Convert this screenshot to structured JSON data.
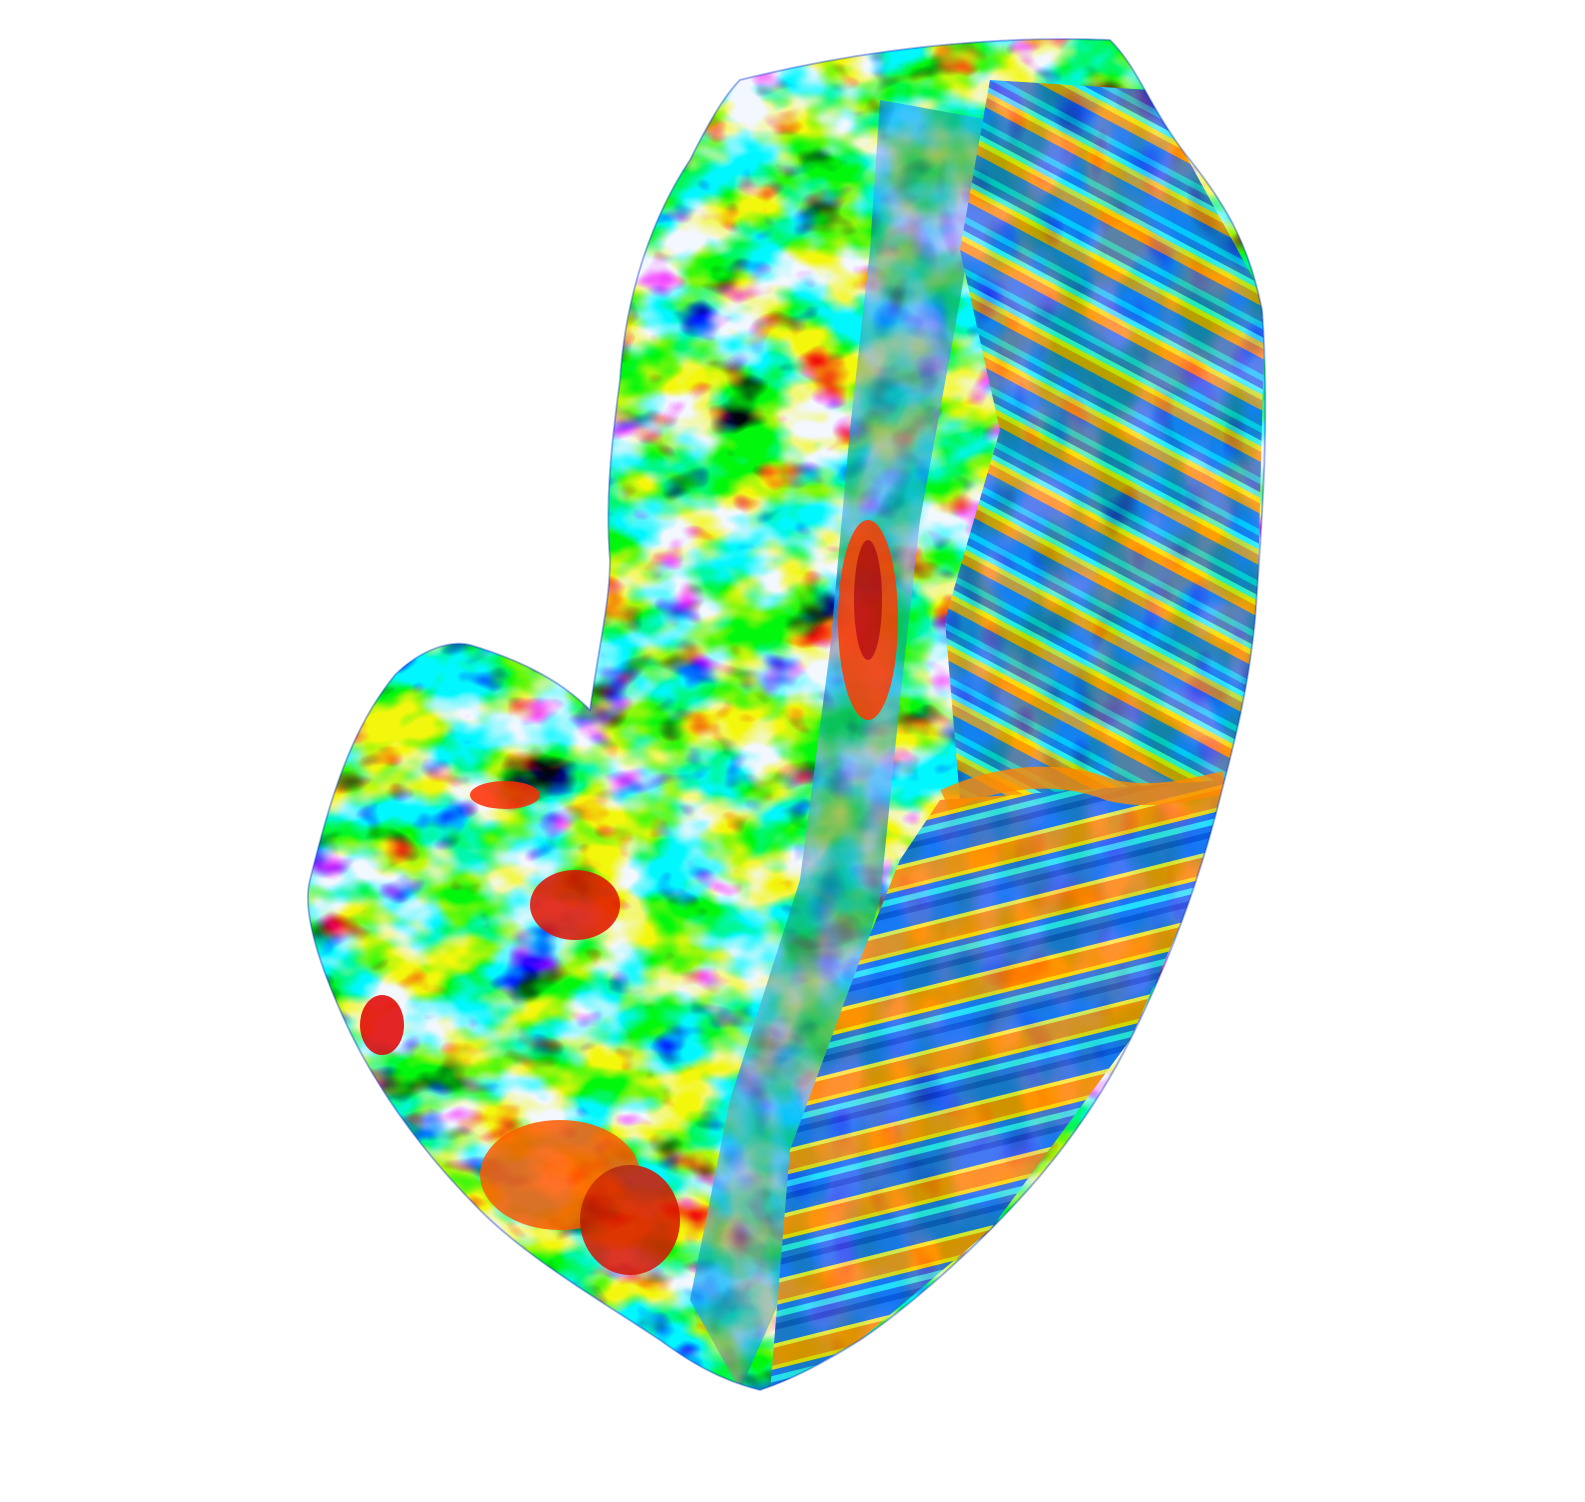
{
  "scene": {
    "background_color": "#ffffff",
    "object": "3d-surface-render",
    "colormap": "jet",
    "colormap_stops": [
      "#00008f",
      "#0000ff",
      "#0080ff",
      "#00ffff",
      "#80ff80",
      "#ffff00",
      "#ff8000",
      "#ff0000",
      "#800000"
    ],
    "base_color": "#1e6cf0",
    "pattern_regions": [
      {
        "region": "left-lobe",
        "pattern": "mottled-spots"
      },
      {
        "region": "upper-body",
        "pattern": "mottled-spots"
      },
      {
        "region": "upper-right-face",
        "pattern": "diagonal-stripes"
      },
      {
        "region": "lower-right-face",
        "pattern": "horizontal-stripes"
      }
    ]
  }
}
